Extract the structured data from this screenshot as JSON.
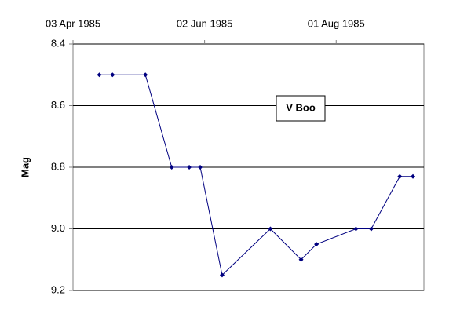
{
  "chart_data": {
    "type": "line",
    "ylabel": "Mag",
    "annotation": "V Boo",
    "x": [
      "1985-04-15",
      "1985-04-21",
      "1985-05-06",
      "1985-05-18",
      "1985-05-26",
      "1985-05-31",
      "1985-06-10",
      "1985-07-02",
      "1985-07-16",
      "1985-07-23",
      "1985-08-10",
      "1985-08-17",
      "1985-08-30",
      "1985-09-05"
    ],
    "series": [
      {
        "name": "V Boo",
        "color": "#000080",
        "values": [
          8.5,
          8.5,
          8.5,
          8.8,
          8.8,
          8.8,
          9.15,
          9.0,
          9.1,
          9.05,
          9.0,
          9.0,
          8.83,
          8.83
        ]
      }
    ],
    "xlim": [
      "1985-04-03",
      "1985-09-10"
    ],
    "xticks": [
      {
        "value": "1985-04-03",
        "label": "03 Apr 1985"
      },
      {
        "value": "1985-06-02",
        "label": "02 Jun 1985"
      },
      {
        "value": "1985-08-01",
        "label": "01 Aug 1985"
      }
    ],
    "x_axis_position": "top",
    "ylim": [
      8.4,
      9.2
    ],
    "y_inverted": true,
    "yticks": [
      8.4,
      8.6,
      8.8,
      {
        "value": 9,
        "label": "9.0"
      },
      9.2
    ],
    "grid": true
  }
}
